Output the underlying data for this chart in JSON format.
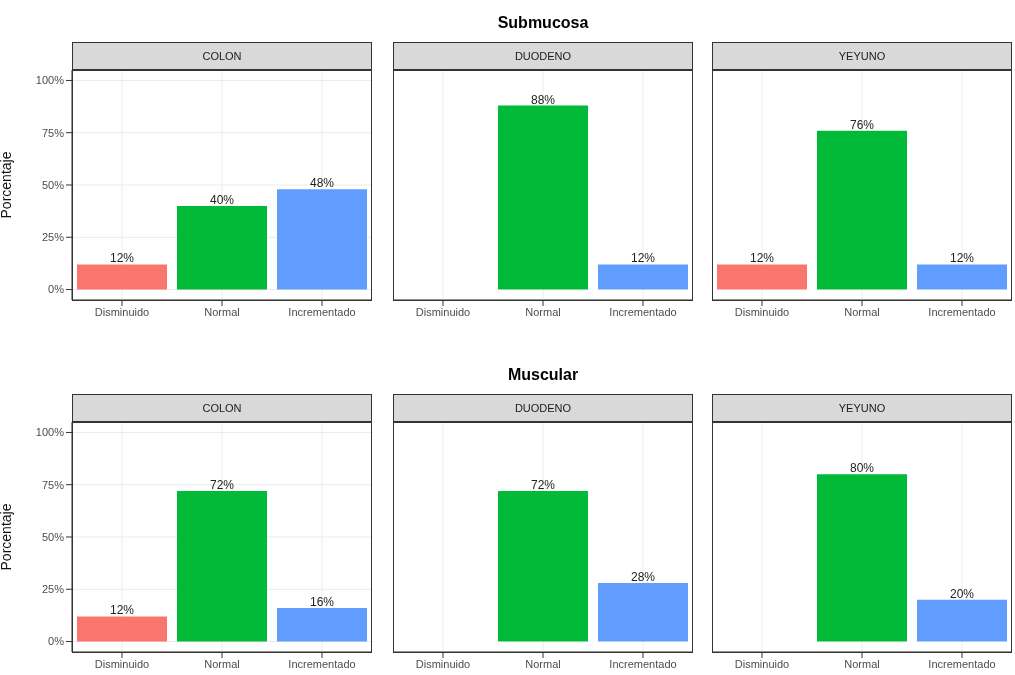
{
  "chart_data": [
    {
      "type": "bar",
      "subtitle": "COLON",
      "ylabel": "Porcentaje",
      "categories": [
        "Disminuido",
        "Normal",
        "Incrementado"
      ],
      "values": [
        12,
        40,
        48
      ],
      "value_labels": [
        "12%",
        "40%",
        "48%"
      ],
      "colors": [
        "#f8766d",
        "#00ba38",
        "#619cff"
      ],
      "ylim": [
        -5,
        105
      ],
      "yticks": [
        {
          "value": 0,
          "label": "0%"
        },
        {
          "value": 25,
          "label": "25%"
        },
        {
          "value": 50,
          "label": "50%"
        },
        {
          "value": 75,
          "label": "75%"
        },
        {
          "value": 100,
          "label": "100%"
        }
      ],
      "grid": true
    },
    {
      "type": "bar",
      "title": "Submucosa",
      "subtitle": "DUODENO",
      "categories": [
        "Disminuido",
        "Normal",
        "Incrementado"
      ],
      "values": [
        null,
        88,
        12
      ],
      "value_labels": [
        null,
        "88%",
        "12%"
      ],
      "colors": [
        "#f8766d",
        "#00ba38",
        "#619cff"
      ],
      "ylim": [
        -5,
        105
      ],
      "yticks": [
        {
          "value": 0,
          "label": null
        },
        {
          "value": 25,
          "label": null
        },
        {
          "value": 50,
          "label": null
        },
        {
          "value": 75,
          "label": null
        },
        {
          "value": 100,
          "label": null
        }
      ],
      "grid": true,
      "tick_labels": "x"
    },
    {
      "type": "bar",
      "subtitle": "YEYUNO",
      "categories": [
        "Disminuido",
        "Normal",
        "Incrementado"
      ],
      "values": [
        12,
        76,
        12
      ],
      "value_labels": [
        "12%",
        "76%",
        "12%"
      ],
      "colors": [
        "#f8766d",
        "#00ba38",
        "#619cff"
      ],
      "ylim": [
        -5,
        105
      ],
      "yticks": [
        {
          "value": 0,
          "label": null
        },
        {
          "value": 25,
          "label": null
        },
        {
          "value": 50,
          "label": null
        },
        {
          "value": 75,
          "label": null
        },
        {
          "value": 100,
          "label": null
        }
      ],
      "grid": true,
      "tick_labels": "x"
    },
    {
      "type": "bar",
      "subtitle": "COLON",
      "ylabel": "Porcentaje",
      "categories": [
        "Disminuido",
        "Normal",
        "Incrementado"
      ],
      "values": [
        12,
        72,
        16
      ],
      "value_labels": [
        "12%",
        "72%",
        "16%"
      ],
      "colors": [
        "#f8766d",
        "#00ba38",
        "#619cff"
      ],
      "ylim": [
        -5,
        105
      ],
      "yticks": [
        {
          "value": 0,
          "label": "0%"
        },
        {
          "value": 25,
          "label": "25%"
        },
        {
          "value": 50,
          "label": "50%"
        },
        {
          "value": 75,
          "label": "75%"
        },
        {
          "value": 100,
          "label": "100%"
        }
      ],
      "grid": true
    },
    {
      "type": "bar",
      "title": "Muscular",
      "subtitle": "DUODENO",
      "categories": [
        "Disminuido",
        "Normal",
        "Incrementado"
      ],
      "values": [
        null,
        72,
        28
      ],
      "value_labels": [
        null,
        "72%",
        "28%"
      ],
      "colors": [
        "#f8766d",
        "#00ba38",
        "#619cff"
      ],
      "ylim": [
        -5,
        105
      ],
      "yticks": [
        {
          "value": 0,
          "label": null
        },
        {
          "value": 25,
          "label": null
        },
        {
          "value": 50,
          "label": null
        },
        {
          "value": 75,
          "label": null
        },
        {
          "value": 100,
          "label": null
        }
      ],
      "grid": true,
      "tick_labels": "x"
    },
    {
      "type": "bar",
      "subtitle": "YEYUNO",
      "categories": [
        "Disminuido",
        "Normal",
        "Incrementado"
      ],
      "values": [
        null,
        80,
        20
      ],
      "value_labels": [
        null,
        "80%",
        "20%"
      ],
      "colors": [
        "#f8766d",
        "#00ba38",
        "#619cff"
      ],
      "ylim": [
        -5,
        105
      ],
      "yticks": [
        {
          "value": 0,
          "label": null
        },
        {
          "value": 25,
          "label": null
        },
        {
          "value": 50,
          "label": null
        },
        {
          "value": 75,
          "label": null
        },
        {
          "value": 100,
          "label": null
        }
      ],
      "grid": true,
      "tick_labels": "x"
    }
  ]
}
